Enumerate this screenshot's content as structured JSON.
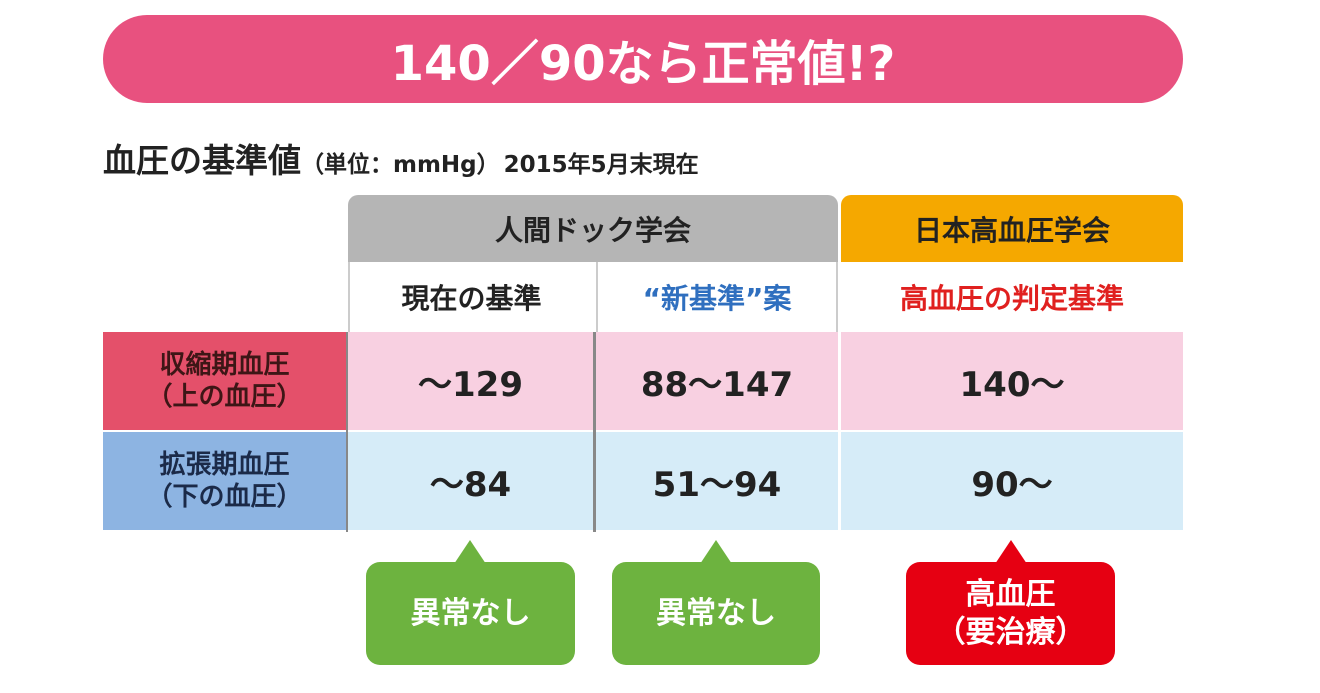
{
  "title": "140／90なら正常値!?",
  "subtitle": {
    "main": "血圧の基準値",
    "unit": "（単位：mmHg）",
    "date": "2015年5月末現在"
  },
  "table": {
    "groups": [
      "人間ドック学会",
      "日本高血圧学会"
    ],
    "columns": [
      "現在の基準",
      "“新基準”案",
      "高血圧の判定基準"
    ],
    "rows": [
      {
        "label": [
          "収縮期血圧",
          "（上の血圧）"
        ],
        "cells": [
          "～129",
          "88～147",
          "140～"
        ]
      },
      {
        "label": [
          "拡張期血圧",
          "（下の血圧）"
        ],
        "cells": [
          "～84",
          "51～94",
          "90～"
        ]
      }
    ]
  },
  "callouts": [
    [
      "異常なし"
    ],
    [
      "異常なし"
    ],
    [
      "高血圧",
      "（要治療）"
    ]
  ]
}
